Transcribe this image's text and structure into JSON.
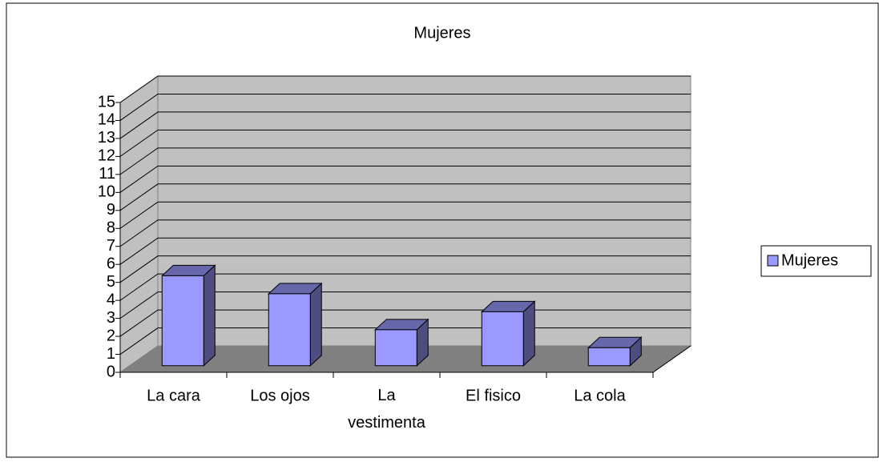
{
  "chart_data": {
    "type": "bar3d",
    "title": "Mujeres",
    "categories": [
      "La cara",
      "Los ojos",
      "La vestimenta",
      "El fisico",
      "La cola"
    ],
    "series": [
      {
        "name": "Mujeres",
        "color": "#9999ff",
        "values": [
          5,
          4,
          2,
          3,
          1
        ]
      }
    ],
    "ylim": [
      0,
      15
    ],
    "yticks": [
      0,
      1,
      2,
      3,
      4,
      5,
      6,
      7,
      8,
      9,
      10,
      11,
      12,
      13,
      14,
      15
    ],
    "grid": true,
    "legend": "right"
  }
}
